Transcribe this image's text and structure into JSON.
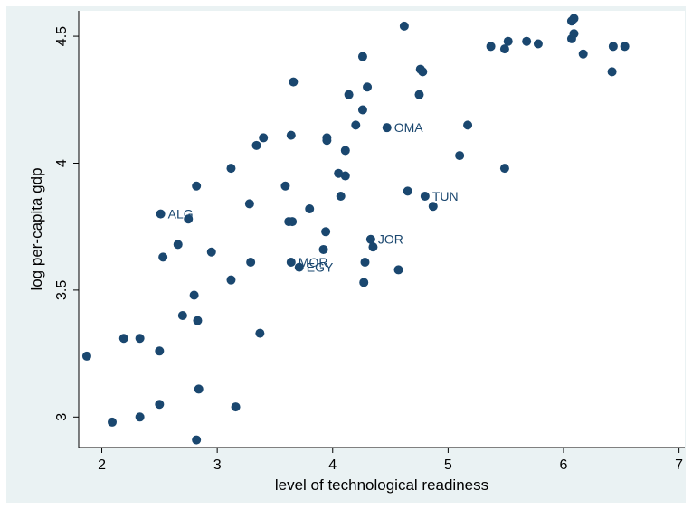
{
  "chart_data": {
    "type": "scatter",
    "title": "",
    "xlabel": "level of technological readiness",
    "ylabel": "log per-capita gdp",
    "xlim": [
      1.8,
      7.05
    ],
    "ylim": [
      2.88,
      4.6
    ],
    "xticks": [
      2,
      3,
      4,
      5,
      6,
      7
    ],
    "yticks": [
      3,
      3.5,
      4,
      4.5
    ],
    "ytick_labels": [
      "3",
      "3.5",
      "4",
      "4.5"
    ],
    "grid": false,
    "legend": "none",
    "marker_color": "#1a476f",
    "background": "#eaf2f3",
    "points": [
      {
        "x": 1.87,
        "y": 3.24
      },
      {
        "x": 2.09,
        "y": 2.98
      },
      {
        "x": 2.19,
        "y": 3.31
      },
      {
        "x": 2.33,
        "y": 3.31
      },
      {
        "x": 2.33,
        "y": 3.0
      },
      {
        "x": 2.5,
        "y": 3.26
      },
      {
        "x": 2.5,
        "y": 3.05
      },
      {
        "x": 2.51,
        "y": 3.8,
        "label": "ALG"
      },
      {
        "x": 2.53,
        "y": 3.63
      },
      {
        "x": 2.66,
        "y": 3.68
      },
      {
        "x": 2.7,
        "y": 3.4
      },
      {
        "x": 2.75,
        "y": 3.78
      },
      {
        "x": 2.8,
        "y": 3.48
      },
      {
        "x": 2.82,
        "y": 3.91
      },
      {
        "x": 2.83,
        "y": 3.38
      },
      {
        "x": 2.84,
        "y": 3.11
      },
      {
        "x": 2.82,
        "y": 2.91
      },
      {
        "x": 2.95,
        "y": 3.65
      },
      {
        "x": 3.12,
        "y": 3.98
      },
      {
        "x": 3.12,
        "y": 3.54
      },
      {
        "x": 3.16,
        "y": 3.04
      },
      {
        "x": 3.28,
        "y": 3.84
      },
      {
        "x": 3.29,
        "y": 3.61
      },
      {
        "x": 3.34,
        "y": 4.07
      },
      {
        "x": 3.37,
        "y": 3.33
      },
      {
        "x": 3.4,
        "y": 4.1
      },
      {
        "x": 3.59,
        "y": 3.91
      },
      {
        "x": 3.62,
        "y": 3.77
      },
      {
        "x": 3.64,
        "y": 4.11
      },
      {
        "x": 3.65,
        "y": 3.77
      },
      {
        "x": 3.64,
        "y": 3.61,
        "label": "MOR"
      },
      {
        "x": 3.66,
        "y": 4.32
      },
      {
        "x": 3.71,
        "y": 3.59,
        "label": "EGY"
      },
      {
        "x": 3.8,
        "y": 3.82
      },
      {
        "x": 3.92,
        "y": 3.66
      },
      {
        "x": 3.94,
        "y": 3.73
      },
      {
        "x": 3.95,
        "y": 4.1
      },
      {
        "x": 3.95,
        "y": 4.09
      },
      {
        "x": 4.05,
        "y": 3.96
      },
      {
        "x": 4.07,
        "y": 3.87
      },
      {
        "x": 4.11,
        "y": 3.95
      },
      {
        "x": 4.11,
        "y": 4.05
      },
      {
        "x": 4.14,
        "y": 4.27
      },
      {
        "x": 4.2,
        "y": 4.15
      },
      {
        "x": 4.26,
        "y": 4.42
      },
      {
        "x": 4.26,
        "y": 4.21
      },
      {
        "x": 4.27,
        "y": 3.53
      },
      {
        "x": 4.28,
        "y": 3.61
      },
      {
        "x": 4.3,
        "y": 4.3
      },
      {
        "x": 4.33,
        "y": 3.7,
        "label": "JOR"
      },
      {
        "x": 4.35,
        "y": 3.67
      },
      {
        "x": 4.47,
        "y": 4.14,
        "label": "OMA"
      },
      {
        "x": 4.57,
        "y": 3.58
      },
      {
        "x": 4.62,
        "y": 4.54
      },
      {
        "x": 4.65,
        "y": 3.89
      },
      {
        "x": 4.75,
        "y": 4.27
      },
      {
        "x": 4.76,
        "y": 4.37
      },
      {
        "x": 4.78,
        "y": 4.36
      },
      {
        "x": 4.8,
        "y": 3.87,
        "label": "TUN"
      },
      {
        "x": 4.87,
        "y": 3.83
      },
      {
        "x": 5.1,
        "y": 4.03
      },
      {
        "x": 5.17,
        "y": 4.15
      },
      {
        "x": 5.37,
        "y": 4.46
      },
      {
        "x": 5.49,
        "y": 3.98
      },
      {
        "x": 5.49,
        "y": 4.45
      },
      {
        "x": 5.52,
        "y": 4.48
      },
      {
        "x": 5.68,
        "y": 4.48
      },
      {
        "x": 5.78,
        "y": 4.47
      },
      {
        "x": 6.07,
        "y": 4.49
      },
      {
        "x": 6.07,
        "y": 4.56
      },
      {
        "x": 6.09,
        "y": 4.57
      },
      {
        "x": 6.09,
        "y": 4.51
      },
      {
        "x": 6.17,
        "y": 4.43
      },
      {
        "x": 6.42,
        "y": 4.36
      },
      {
        "x": 6.43,
        "y": 4.46
      },
      {
        "x": 6.53,
        "y": 4.46
      }
    ]
  }
}
